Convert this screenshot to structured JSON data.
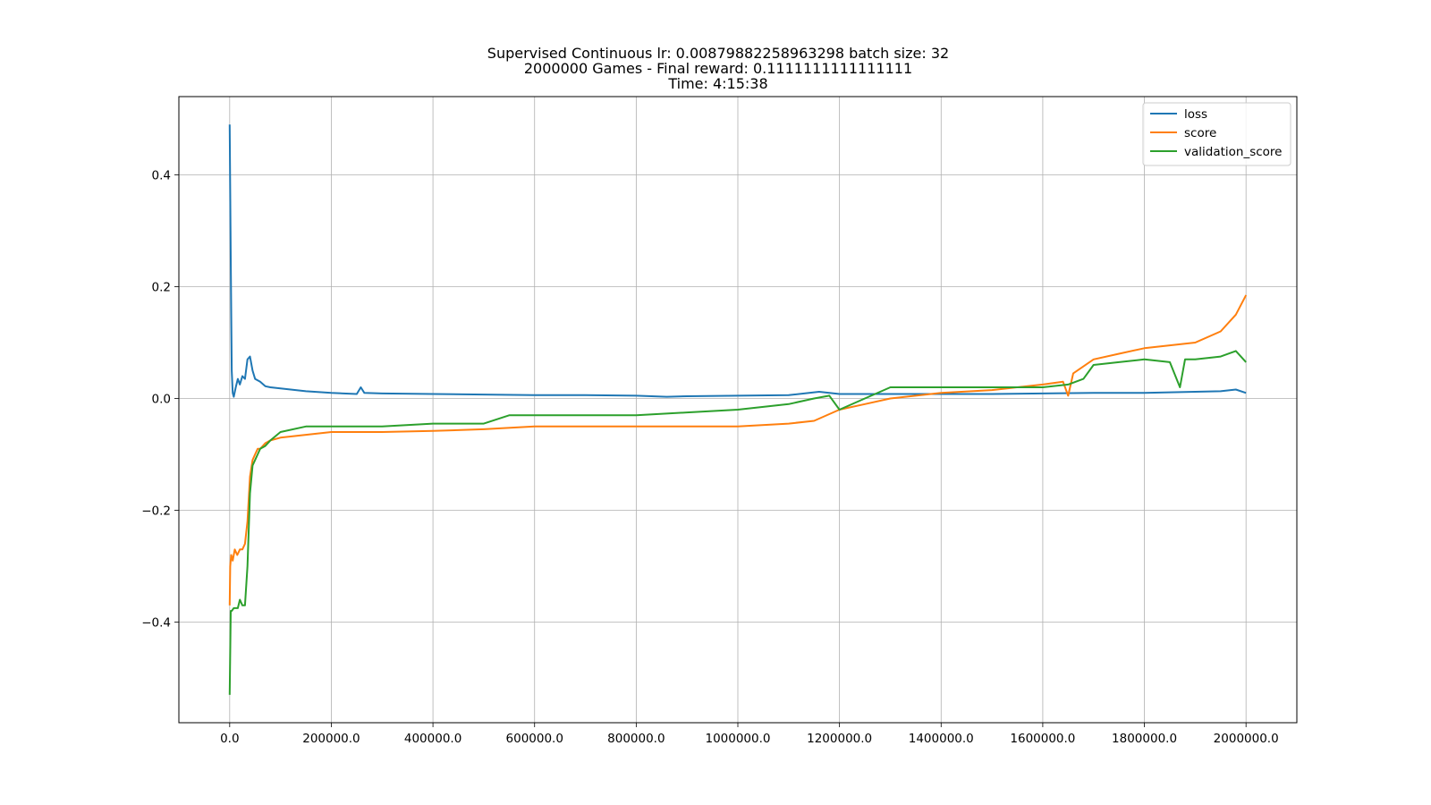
{
  "chart_data": {
    "type": "line",
    "title_lines": [
      "Supervised Continuous lr: 0.00879882258963298 batch size: 32",
      "2000000 Games - Final reward: 0.1111111111111111",
      "Time: 4:15:38"
    ],
    "xlabel": "",
    "ylabel": "",
    "xlim": [
      -100000,
      2100000
    ],
    "ylim": [
      -0.58,
      0.54
    ],
    "x_ticks": [
      0,
      200000,
      400000,
      600000,
      800000,
      1000000,
      1200000,
      1400000,
      1600000,
      1800000,
      2000000
    ],
    "x_tick_labels": [
      "0.0",
      "200000.0",
      "400000.0",
      "600000.0",
      "800000.0",
      "1000000.0",
      "1200000.0",
      "1400000.0",
      "1600000.0",
      "1800000.0",
      "2000000.0"
    ],
    "y_ticks": [
      -0.4,
      -0.2,
      0.0,
      0.2,
      0.4
    ],
    "y_tick_labels": [
      "−0.4",
      "−0.2",
      "0.0",
      "0.2",
      "0.4"
    ],
    "grid": true,
    "legend_position": "top-right",
    "series": [
      {
        "name": "loss",
        "color": "#1f77b4",
        "x": [
          0,
          2000,
          4000,
          6000,
          8000,
          12000,
          16000,
          20000,
          25000,
          30000,
          35000,
          40000,
          45000,
          50000,
          60000,
          70000,
          80000,
          100000,
          120000,
          150000,
          200000,
          250000,
          258000,
          265000,
          300000,
          400000,
          500000,
          600000,
          700000,
          800000,
          860000,
          900000,
          1000000,
          1100000,
          1160000,
          1200000,
          1300000,
          1400000,
          1500000,
          1600000,
          1700000,
          1800000,
          1900000,
          1950000,
          1980000,
          2000000
        ],
        "y": [
          0.49,
          0.25,
          0.05,
          0.01,
          0.003,
          0.02,
          0.035,
          0.025,
          0.04,
          0.035,
          0.07,
          0.075,
          0.05,
          0.035,
          0.03,
          0.022,
          0.02,
          0.018,
          0.016,
          0.013,
          0.01,
          0.008,
          0.02,
          0.01,
          0.009,
          0.008,
          0.007,
          0.006,
          0.006,
          0.005,
          0.003,
          0.004,
          0.005,
          0.006,
          0.012,
          0.008,
          0.008,
          0.008,
          0.008,
          0.009,
          0.01,
          0.01,
          0.012,
          0.013,
          0.016,
          0.01
        ]
      },
      {
        "name": "score",
        "color": "#ff7f0e",
        "x": [
          0,
          1000,
          3000,
          6000,
          10000,
          15000,
          20000,
          25000,
          30000,
          35000,
          40000,
          45000,
          50000,
          55000,
          60000,
          70000,
          80000,
          100000,
          150000,
          200000,
          300000,
          400000,
          500000,
          600000,
          700000,
          800000,
          900000,
          1000000,
          1100000,
          1150000,
          1200000,
          1250000,
          1300000,
          1350000,
          1400000,
          1500000,
          1600000,
          1640000,
          1650000,
          1660000,
          1700000,
          1750000,
          1800000,
          1850000,
          1900000,
          1950000,
          1980000,
          2000000
        ],
        "y": [
          -0.37,
          -0.3,
          -0.28,
          -0.29,
          -0.27,
          -0.28,
          -0.27,
          -0.27,
          -0.26,
          -0.22,
          -0.14,
          -0.11,
          -0.1,
          -0.09,
          -0.09,
          -0.08,
          -0.075,
          -0.07,
          -0.065,
          -0.06,
          -0.06,
          -0.058,
          -0.055,
          -0.05,
          -0.05,
          -0.05,
          -0.05,
          -0.05,
          -0.045,
          -0.04,
          -0.02,
          -0.01,
          0.0,
          0.005,
          0.01,
          0.015,
          0.025,
          0.03,
          0.005,
          0.045,
          0.07,
          0.08,
          0.09,
          0.095,
          0.1,
          0.12,
          0.15,
          0.185
        ]
      },
      {
        "name": "validation_score",
        "color": "#2ca02c",
        "x": [
          0,
          2000,
          4000,
          8000,
          12000,
          16000,
          20000,
          25000,
          30000,
          35000,
          40000,
          45000,
          50000,
          55000,
          60000,
          70000,
          80000,
          100000,
          150000,
          200000,
          300000,
          400000,
          500000,
          550000,
          600000,
          700000,
          800000,
          900000,
          1000000,
          1100000,
          1150000,
          1180000,
          1200000,
          1250000,
          1300000,
          1350000,
          1400000,
          1500000,
          1600000,
          1650000,
          1680000,
          1700000,
          1750000,
          1800000,
          1850000,
          1870000,
          1880000,
          1900000,
          1950000,
          1980000,
          2000000
        ],
        "y": [
          -0.53,
          -0.38,
          -0.38,
          -0.375,
          -0.375,
          -0.375,
          -0.36,
          -0.37,
          -0.37,
          -0.3,
          -0.17,
          -0.12,
          -0.11,
          -0.1,
          -0.09,
          -0.085,
          -0.075,
          -0.06,
          -0.05,
          -0.05,
          -0.05,
          -0.045,
          -0.045,
          -0.03,
          -0.03,
          -0.03,
          -0.03,
          -0.025,
          -0.02,
          -0.01,
          0.0,
          0.005,
          -0.02,
          0.0,
          0.02,
          0.02,
          0.02,
          0.02,
          0.02,
          0.025,
          0.035,
          0.06,
          0.065,
          0.07,
          0.065,
          0.02,
          0.07,
          0.07,
          0.075,
          0.085,
          0.065
        ]
      }
    ]
  }
}
